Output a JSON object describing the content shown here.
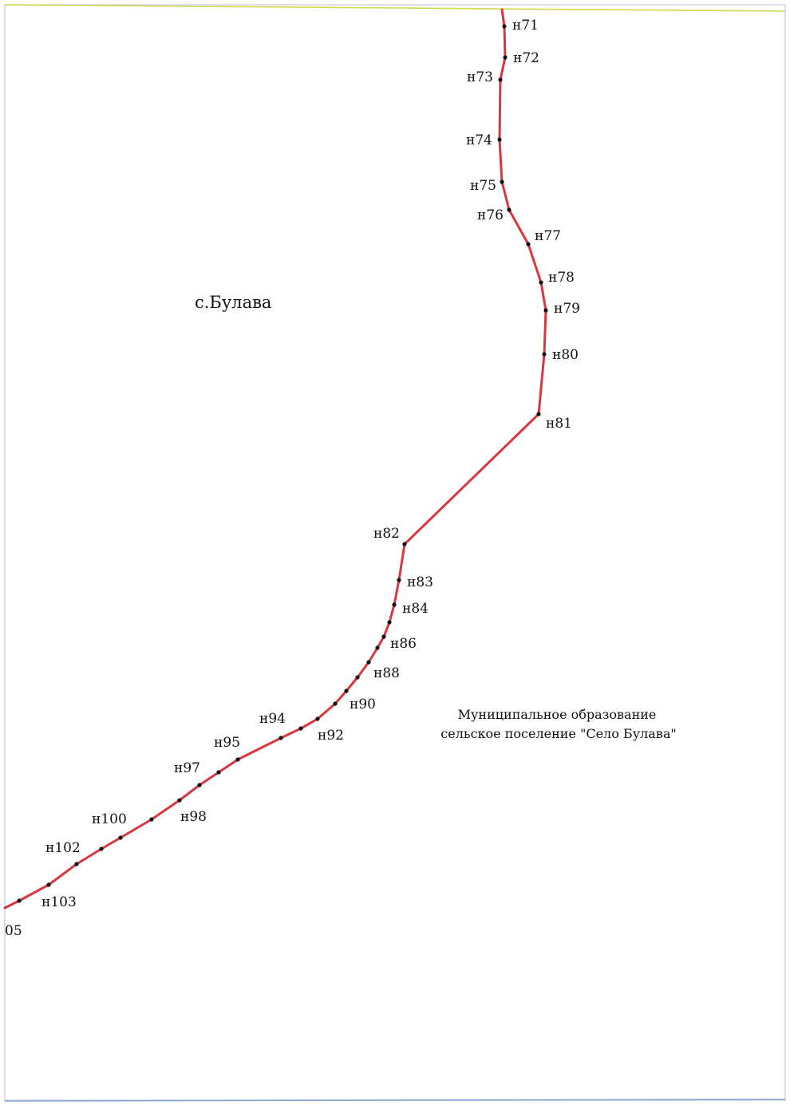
{
  "map": {
    "settlement_label": "с.Булава",
    "municipality": {
      "line1": "Муниципальное образование",
      "line2": "сельское поселение \"Село Булава\""
    },
    "boundary_color": "#d9373f",
    "point_color": "#111111",
    "frame_edge_colors": [
      "#d2d84a",
      "#7fa3d6"
    ],
    "points": [
      {
        "id": "71",
        "label": "н71"
      },
      {
        "id": "72",
        "label": "н72"
      },
      {
        "id": "73",
        "label": "н73"
      },
      {
        "id": "74",
        "label": "н74"
      },
      {
        "id": "75",
        "label": "н75"
      },
      {
        "id": "76",
        "label": "н76"
      },
      {
        "id": "77",
        "label": "н77"
      },
      {
        "id": "78",
        "label": "н78"
      },
      {
        "id": "79",
        "label": "н79"
      },
      {
        "id": "80",
        "label": "н80"
      },
      {
        "id": "81",
        "label": "н81"
      },
      {
        "id": "82",
        "label": "н82"
      },
      {
        "id": "83",
        "label": "н83"
      },
      {
        "id": "84",
        "label": "н84"
      },
      {
        "id": "85",
        "label": ""
      },
      {
        "id": "86",
        "label": "н86"
      },
      {
        "id": "87",
        "label": ""
      },
      {
        "id": "88",
        "label": "н88"
      },
      {
        "id": "89",
        "label": ""
      },
      {
        "id": "90",
        "label": "н90"
      },
      {
        "id": "91",
        "label": ""
      },
      {
        "id": "92",
        "label": "н92"
      },
      {
        "id": "93",
        "label": ""
      },
      {
        "id": "94",
        "label": "н94"
      },
      {
        "id": "95",
        "label": "н95"
      },
      {
        "id": "96",
        "label": ""
      },
      {
        "id": "97",
        "label": "н97"
      },
      {
        "id": "98",
        "label": "н98"
      },
      {
        "id": "99",
        "label": ""
      },
      {
        "id": "100",
        "label": "н100"
      },
      {
        "id": "101",
        "label": ""
      },
      {
        "id": "102",
        "label": "н102"
      },
      {
        "id": "103",
        "label": "н103"
      },
      {
        "id": "104",
        "label": ""
      },
      {
        "id": "105",
        "label": "05"
      }
    ]
  }
}
